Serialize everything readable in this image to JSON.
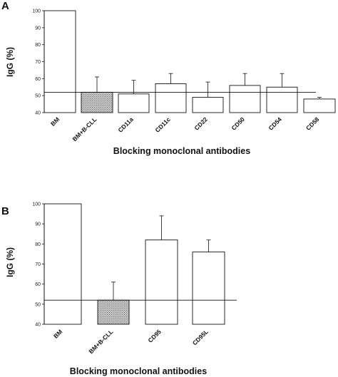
{
  "chart_data": [
    {
      "panel": "A",
      "type": "bar",
      "xlabel": "Blocking monoclonal antibodies",
      "ylabel": "IgG (%)",
      "ylim": [
        40,
        100
      ],
      "yticks": [
        40,
        50,
        60,
        70,
        80,
        90,
        100
      ],
      "categories": [
        "BM",
        "BM+B-CLL",
        "CD11a",
        "CD11c",
        "CD22",
        "CD50",
        "CD54",
        "CD58"
      ],
      "values": [
        100,
        52,
        51,
        57,
        49,
        56,
        55,
        48
      ],
      "error_up": [
        0,
        9,
        8,
        6,
        9,
        7,
        8,
        1
      ],
      "reference_line": 52,
      "shaded_category": "BM+B-CLL"
    },
    {
      "panel": "B",
      "type": "bar",
      "xlabel": "Blocking monoclonal antibodies",
      "ylabel": "IgG (%)",
      "ylim": [
        40,
        100
      ],
      "yticks": [
        40,
        50,
        60,
        70,
        80,
        90,
        100
      ],
      "categories": [
        "BM",
        "BM+B-CLL",
        "CD95",
        "CD95L"
      ],
      "values": [
        100,
        52,
        82,
        76
      ],
      "error_up": [
        0,
        9,
        12,
        6
      ],
      "reference_line": 52,
      "shaded_category": "BM+B-CLL"
    }
  ],
  "colors": {
    "bar_fill": "#ffffff",
    "bar_stroke": "#111111",
    "shaded_fill": "#b8b8b8",
    "axis": "#111111"
  }
}
